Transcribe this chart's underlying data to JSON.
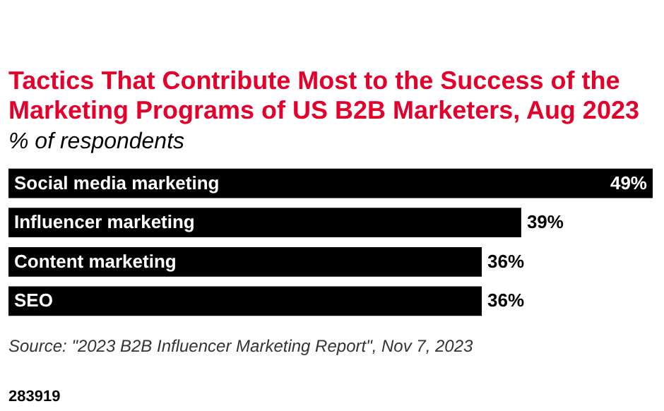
{
  "chart_data": {
    "type": "bar",
    "orientation": "horizontal",
    "title": "Tactics That Contribute Most to the Success of the Marketing Programs of US B2B Marketers, Aug 2023",
    "subtitle": "% of respondents",
    "categories": [
      "Social media marketing",
      "Influencer marketing",
      "Content marketing",
      "SEO"
    ],
    "values": [
      49,
      39,
      36,
      36
    ],
    "value_labels": [
      "49%",
      "39%",
      "36%",
      "36%"
    ],
    "color": "#000000",
    "annotations": [
      "Source: \"2023 B2B Influencer Marketing Report\", Nov 7, 2023",
      "283919"
    ]
  }
}
